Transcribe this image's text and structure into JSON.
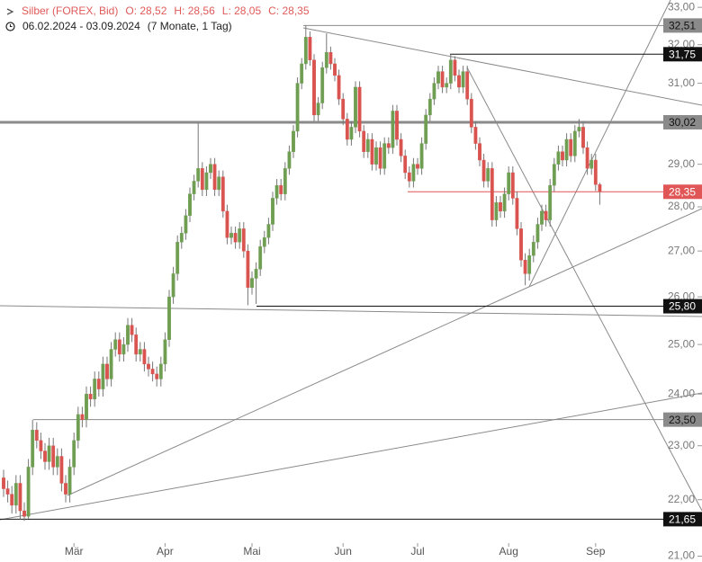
{
  "chart_data": {
    "type": "candlestick",
    "title": "Silber (FOREX, Bid)",
    "ohlc_labels": [
      "O: 28,52",
      "H: 28,56",
      "L: 28,05",
      "C: 28,35"
    ],
    "date_range": "06.02.2024 - 03.09.2024",
    "period": "(7 Monate, 1 Tag)",
    "log_scale": true,
    "up_color": "#6f9e52",
    "down_color": "#d9534f",
    "wick_color": "#777777",
    "categories": [
      null,
      null,
      null,
      null,
      null,
      null,
      null,
      null,
      null,
      null,
      null,
      null,
      null,
      null,
      null,
      null,
      null,
      "Mär",
      null,
      null,
      null,
      null,
      null,
      null,
      null,
      null,
      null,
      null,
      null,
      null,
      null,
      null,
      null,
      null,
      null,
      null,
      null,
      null,
      null,
      "Apr",
      null,
      null,
      null,
      null,
      null,
      null,
      null,
      null,
      null,
      null,
      null,
      null,
      null,
      null,
      null,
      null,
      null,
      null,
      null,
      null,
      "Mai",
      null,
      null,
      null,
      null,
      null,
      null,
      null,
      null,
      null,
      null,
      null,
      null,
      null,
      null,
      null,
      null,
      null,
      null,
      null,
      null,
      null,
      "Jun",
      null,
      null,
      null,
      null,
      null,
      null,
      null,
      null,
      null,
      null,
      null,
      null,
      null,
      null,
      null,
      null,
      null,
      "Jul",
      null,
      null,
      null,
      null,
      null,
      null,
      null,
      null,
      null,
      null,
      null,
      null,
      null,
      null,
      null,
      null,
      null,
      null,
      null,
      null,
      null,
      "Aug",
      null,
      null,
      null,
      null,
      null,
      null,
      null,
      null,
      null,
      null,
      null,
      null,
      null,
      null,
      null,
      null,
      null,
      null,
      null,
      null,
      "Sep",
      null
    ],
    "open": [
      22.4,
      22.2,
      22.1,
      21.9,
      22.3,
      21.8,
      21.7,
      22.6,
      23.3,
      23.1,
      22.9,
      22.7,
      23.0,
      22.6,
      22.8,
      22.3,
      22.1,
      22.6,
      23.1,
      23.6,
      23.5,
      24.0,
      23.9,
      24.3,
      24.1,
      24.6,
      24.3,
      24.9,
      25.1,
      24.8,
      25.0,
      25.4,
      25.2,
      24.8,
      24.9,
      24.6,
      24.5,
      24.4,
      24.3,
      24.6,
      25.1,
      26.0,
      26.5,
      27.2,
      27.4,
      27.8,
      28.3,
      28.6,
      28.9,
      28.4,
      28.8,
      29.0,
      28.4,
      28.7,
      27.9,
      27.3,
      27.4,
      27.2,
      27.5,
      27.0,
      26.2,
      26.4,
      26.6,
      27.1,
      27.3,
      27.6,
      28.2,
      28.5,
      28.3,
      28.9,
      29.3,
      29.8,
      31.0,
      31.5,
      32.2,
      31.6,
      30.2,
      30.5,
      31.4,
      31.8,
      31.5,
      31.2,
      30.6,
      30.1,
      29.6,
      29.9,
      30.9,
      29.8,
      29.3,
      29.6,
      29.0,
      29.4,
      28.9,
      29.5,
      29.4,
      30.3,
      29.6,
      29.2,
      28.8,
      28.6,
      29.0,
      28.9,
      29.5,
      30.2,
      30.6,
      31.0,
      31.3,
      30.9,
      31.0,
      31.6,
      31.2,
      30.9,
      31.3,
      30.6,
      29.9,
      29.5,
      29.1,
      28.6,
      28.9,
      27.7,
      28.1,
      27.9,
      28.3,
      28.8,
      28.2,
      27.5,
      26.8,
      26.5,
      26.9,
      27.2,
      27.6,
      27.9,
      27.7,
      28.5,
      29.0,
      29.3,
      29.1,
      29.6,
      29.2,
      29.8,
      29.9,
      29.4,
      28.9,
      29.1,
      28.52
    ],
    "high": [
      22.55,
      22.35,
      22.25,
      22.45,
      22.45,
      21.95,
      22.75,
      23.5,
      23.45,
      23.25,
      23.05,
      23.15,
      23.15,
      22.95,
      22.95,
      22.45,
      22.75,
      23.25,
      23.75,
      23.75,
      24.15,
      24.15,
      24.45,
      24.45,
      24.75,
      24.75,
      25.05,
      25.25,
      25.25,
      25.15,
      25.55,
      25.55,
      25.35,
      25.05,
      25.05,
      24.75,
      24.65,
      24.55,
      24.75,
      25.25,
      26.15,
      26.65,
      27.35,
      27.55,
      27.95,
      28.45,
      28.75,
      30.0,
      29.05,
      28.95,
      29.15,
      29.15,
      28.85,
      28.85,
      28.05,
      27.55,
      27.55,
      27.65,
      27.65,
      27.15,
      26.55,
      26.75,
      27.25,
      27.45,
      27.75,
      28.35,
      28.65,
      28.65,
      29.05,
      29.45,
      29.95,
      31.15,
      31.65,
      32.51,
      32.35,
      31.75,
      30.65,
      31.55,
      32.3,
      31.95,
      31.65,
      31.35,
      30.75,
      30.25,
      30.05,
      31.05,
      31.05,
      29.95,
      29.75,
      29.75,
      29.55,
      29.55,
      29.65,
      29.65,
      30.45,
      30.45,
      29.75,
      29.35,
      28.95,
      29.15,
      29.15,
      29.65,
      30.35,
      30.75,
      31.15,
      31.45,
      31.45,
      31.15,
      31.75,
      31.7,
      31.35,
      31.45,
      31.45,
      30.75,
      30.05,
      29.65,
      29.25,
      29.05,
      29.05,
      28.25,
      28.25,
      28.45,
      28.95,
      28.95,
      28.35,
      27.65,
      26.95,
      27.05,
      27.35,
      27.75,
      28.05,
      28.05,
      28.65,
      29.15,
      29.45,
      29.45,
      29.75,
      29.75,
      29.95,
      30.1,
      30.05,
      29.55,
      29.25,
      29.25,
      28.56
    ],
    "low": [
      22.05,
      21.95,
      21.75,
      21.75,
      21.65,
      21.62,
      21.66,
      22.45,
      22.95,
      22.75,
      22.55,
      22.55,
      22.45,
      22.45,
      22.15,
      21.95,
      21.95,
      22.45,
      22.95,
      23.35,
      23.35,
      23.75,
      23.75,
      23.95,
      23.95,
      24.15,
      24.15,
      24.75,
      24.65,
      24.65,
      24.85,
      25.05,
      24.65,
      24.65,
      24.45,
      24.35,
      24.25,
      24.15,
      24.15,
      24.45,
      24.95,
      25.85,
      26.35,
      27.05,
      27.25,
      27.65,
      28.15,
      28.45,
      28.25,
      28.25,
      28.65,
      28.25,
      28.25,
      27.75,
      27.15,
      27.15,
      27.05,
      27.05,
      26.85,
      25.82,
      26.05,
      25.85,
      26.45,
      26.95,
      27.15,
      27.45,
      28.05,
      28.15,
      28.15,
      28.75,
      29.15,
      29.65,
      30.85,
      31.35,
      31.45,
      30.05,
      30.05,
      30.35,
      31.25,
      31.35,
      31.05,
      30.45,
      29.95,
      29.45,
      29.45,
      29.75,
      29.65,
      29.15,
      29.15,
      28.85,
      28.85,
      28.75,
      28.75,
      29.25,
      29.25,
      29.45,
      29.05,
      28.65,
      28.45,
      28.45,
      28.75,
      28.75,
      29.35,
      30.05,
      30.45,
      30.85,
      30.75,
      30.75,
      30.85,
      31.05,
      30.75,
      30.75,
      30.45,
      29.75,
      29.35,
      28.95,
      28.45,
      28.45,
      27.55,
      27.55,
      27.75,
      27.75,
      28.15,
      28.05,
      27.35,
      26.65,
      26.25,
      26.35,
      26.75,
      27.05,
      27.45,
      27.55,
      27.55,
      28.35,
      28.85,
      28.95,
      28.95,
      29.05,
      29.05,
      29.65,
      29.25,
      28.75,
      28.75,
      28.37,
      28.05
    ],
    "close": [
      22.2,
      22.1,
      21.9,
      22.3,
      21.8,
      21.7,
      22.6,
      23.3,
      23.1,
      22.9,
      22.7,
      23.0,
      22.6,
      22.8,
      22.3,
      22.1,
      22.6,
      23.1,
      23.6,
      23.5,
      24.0,
      23.9,
      24.3,
      24.1,
      24.6,
      24.3,
      24.9,
      25.1,
      24.8,
      25.0,
      25.4,
      25.2,
      24.8,
      24.9,
      24.6,
      24.5,
      24.4,
      24.3,
      24.6,
      25.1,
      26.0,
      26.5,
      27.2,
      27.4,
      27.8,
      28.3,
      28.6,
      28.9,
      28.4,
      28.8,
      29.0,
      28.4,
      28.7,
      27.9,
      27.3,
      27.4,
      27.2,
      27.5,
      27.0,
      26.2,
      26.4,
      26.6,
      27.1,
      27.3,
      27.6,
      28.2,
      28.5,
      28.3,
      28.9,
      29.3,
      29.8,
      31.0,
      31.5,
      32.2,
      31.6,
      30.2,
      30.5,
      31.4,
      31.8,
      31.5,
      31.2,
      30.6,
      30.1,
      29.6,
      29.9,
      30.9,
      29.8,
      29.3,
      29.6,
      29.0,
      29.4,
      28.9,
      29.5,
      29.4,
      30.3,
      29.6,
      29.2,
      28.8,
      28.6,
      29.0,
      28.9,
      29.5,
      30.2,
      30.6,
      31.0,
      31.3,
      30.9,
      31.0,
      31.6,
      31.2,
      30.9,
      31.3,
      30.6,
      29.9,
      29.5,
      29.1,
      28.6,
      28.9,
      27.7,
      28.1,
      27.9,
      28.3,
      28.8,
      28.2,
      27.5,
      26.8,
      26.5,
      26.9,
      27.2,
      27.6,
      27.9,
      27.7,
      28.5,
      29.0,
      29.3,
      29.1,
      29.6,
      29.2,
      29.8,
      29.9,
      29.4,
      28.9,
      29.1,
      28.52,
      28.35
    ],
    "ylim": [
      20.9,
      33.2
    ],
    "yticks": [
      {
        "value": 33,
        "label": "33,00"
      },
      {
        "value": 32,
        "label": "32,00"
      },
      {
        "value": 31,
        "label": "31,00"
      },
      {
        "value": 30,
        "label": "30,00"
      },
      {
        "value": 29,
        "label": "29,00"
      },
      {
        "value": 28,
        "label": "28,00"
      },
      {
        "value": 27,
        "label": "27,00"
      },
      {
        "value": 26,
        "label": "26,00"
      },
      {
        "value": 25,
        "label": "25,00"
      },
      {
        "value": 24,
        "label": "24,00"
      },
      {
        "value": 23,
        "label": "23,00"
      },
      {
        "value": 22,
        "label": "22,00"
      },
      {
        "value": 21,
        "label": "21,00"
      }
    ],
    "levels": [
      {
        "value": 32.51,
        "label": "32,51",
        "color": "#8a8a8a",
        "text_color": "#111111"
      },
      {
        "value": 31.75,
        "label": "31,75",
        "color": "#111111",
        "text_color": "#ffffff"
      },
      {
        "value": 30.02,
        "label": "30,02",
        "color": "#8a8a8a",
        "text_color": "#111111"
      },
      {
        "value": 28.35,
        "label": "28,35",
        "color": "#e05555",
        "text_color": "#ffffff"
      },
      {
        "value": 25.8,
        "label": "25,80",
        "color": "#111111",
        "text_color": "#ffffff"
      },
      {
        "value": 23.5,
        "label": "23,50",
        "color": "#8a8a8a",
        "text_color": "#111111"
      },
      {
        "value": 21.65,
        "label": "21,65",
        "color": "#111111",
        "text_color": "#ffffff"
      }
    ]
  }
}
